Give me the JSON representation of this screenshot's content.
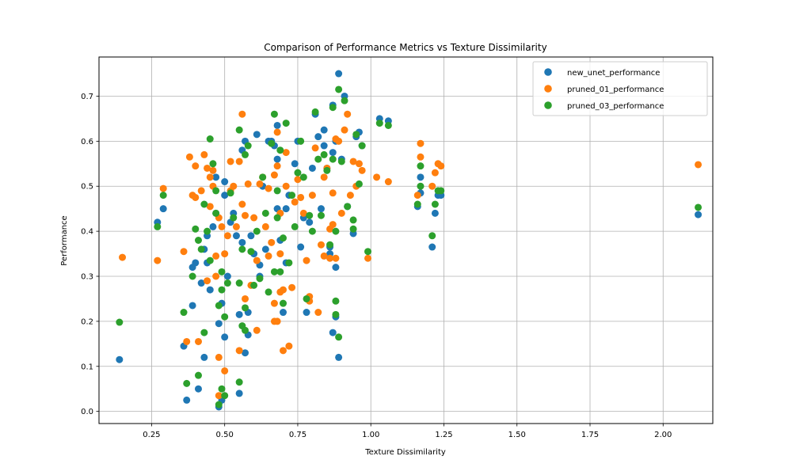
{
  "chart_data": {
    "type": "scatter",
    "title": "Comparison of Performance Metrics vs Texture Dissimilarity",
    "xlabel": "Texture Dissimilarity",
    "ylabel": "Performance",
    "xlim": [
      0.07,
      2.17
    ],
    "ylim": [
      -0.027,
      0.787
    ],
    "xticks": [
      0.25,
      0.5,
      0.75,
      1.0,
      1.25,
      1.5,
      1.75,
      2.0
    ],
    "xtick_labels": [
      "0.25",
      "0.50",
      "0.75",
      "1.00",
      "1.25",
      "1.50",
      "1.75",
      "2.00"
    ],
    "yticks": [
      0.0,
      0.1,
      0.2,
      0.3,
      0.4,
      0.5,
      0.6,
      0.7
    ],
    "ytick_labels": [
      "0.0",
      "0.1",
      "0.2",
      "0.3",
      "0.4",
      "0.5",
      "0.6",
      "0.7"
    ],
    "grid": true,
    "legend_position": "top-right",
    "series": [
      {
        "name": "new_unet_performance",
        "color": "#1f77b4",
        "points": [
          [
            0.14,
            0.115
          ],
          [
            0.27,
            0.42
          ],
          [
            0.29,
            0.45
          ],
          [
            0.36,
            0.145
          ],
          [
            0.37,
            0.025
          ],
          [
            0.39,
            0.235
          ],
          [
            0.39,
            0.32
          ],
          [
            0.4,
            0.33
          ],
          [
            0.41,
            0.05
          ],
          [
            0.42,
            0.285
          ],
          [
            0.43,
            0.12
          ],
          [
            0.43,
            0.36
          ],
          [
            0.44,
            0.33
          ],
          [
            0.44,
            0.39
          ],
          [
            0.45,
            0.27
          ],
          [
            0.46,
            0.41
          ],
          [
            0.47,
            0.44
          ],
          [
            0.47,
            0.52
          ],
          [
            0.48,
            0.195
          ],
          [
            0.48,
            0.01
          ],
          [
            0.49,
            0.025
          ],
          [
            0.49,
            0.24
          ],
          [
            0.5,
            0.165
          ],
          [
            0.5,
            0.48
          ],
          [
            0.5,
            0.51
          ],
          [
            0.51,
            0.3
          ],
          [
            0.52,
            0.42
          ],
          [
            0.53,
            0.44
          ],
          [
            0.54,
            0.39
          ],
          [
            0.55,
            0.215
          ],
          [
            0.55,
            0.04
          ],
          [
            0.56,
            0.58
          ],
          [
            0.56,
            0.375
          ],
          [
            0.57,
            0.6
          ],
          [
            0.57,
            0.13
          ],
          [
            0.58,
            0.22
          ],
          [
            0.58,
            0.17
          ],
          [
            0.59,
            0.39
          ],
          [
            0.6,
            0.35
          ],
          [
            0.61,
            0.615
          ],
          [
            0.62,
            0.325
          ],
          [
            0.62,
            0.3
          ],
          [
            0.63,
            0.5
          ],
          [
            0.64,
            0.36
          ],
          [
            0.65,
            0.6
          ],
          [
            0.66,
            0.6
          ],
          [
            0.67,
            0.59
          ],
          [
            0.68,
            0.635
          ],
          [
            0.68,
            0.56
          ],
          [
            0.68,
            0.45
          ],
          [
            0.69,
            0.44
          ],
          [
            0.69,
            0.38
          ],
          [
            0.7,
            0.22
          ],
          [
            0.71,
            0.33
          ],
          [
            0.71,
            0.45
          ],
          [
            0.72,
            0.48
          ],
          [
            0.74,
            0.55
          ],
          [
            0.75,
            0.6
          ],
          [
            0.76,
            0.365
          ],
          [
            0.77,
            0.43
          ],
          [
            0.78,
            0.22
          ],
          [
            0.79,
            0.42
          ],
          [
            0.8,
            0.54
          ],
          [
            0.81,
            0.66
          ],
          [
            0.82,
            0.61
          ],
          [
            0.83,
            0.45
          ],
          [
            0.84,
            0.59
          ],
          [
            0.84,
            0.625
          ],
          [
            0.85,
            0.54
          ],
          [
            0.86,
            0.35
          ],
          [
            0.86,
            0.365
          ],
          [
            0.87,
            0.575
          ],
          [
            0.87,
            0.68
          ],
          [
            0.87,
            0.175
          ],
          [
            0.88,
            0.21
          ],
          [
            0.88,
            0.32
          ],
          [
            0.88,
            0.6
          ],
          [
            0.89,
            0.75
          ],
          [
            0.89,
            0.12
          ],
          [
            0.9,
            0.56
          ],
          [
            0.91,
            0.7
          ],
          [
            0.92,
            0.455
          ],
          [
            0.94,
            0.395
          ],
          [
            0.95,
            0.61
          ],
          [
            0.96,
            0.62
          ],
          [
            0.97,
            0.59
          ],
          [
            1.03,
            0.65
          ],
          [
            1.06,
            0.645
          ],
          [
            1.16,
            0.455
          ],
          [
            1.17,
            0.485
          ],
          [
            1.17,
            0.52
          ],
          [
            1.21,
            0.365
          ],
          [
            1.22,
            0.44
          ],
          [
            1.23,
            0.48
          ],
          [
            1.24,
            0.48
          ],
          [
            2.12,
            0.437
          ]
        ]
      },
      {
        "name": "pruned_01_performance",
        "color": "#ff7f0e",
        "points": [
          [
            0.15,
            0.342
          ],
          [
            0.27,
            0.335
          ],
          [
            0.29,
            0.495
          ],
          [
            0.36,
            0.355
          ],
          [
            0.37,
            0.155
          ],
          [
            0.38,
            0.565
          ],
          [
            0.39,
            0.48
          ],
          [
            0.4,
            0.475
          ],
          [
            0.4,
            0.545
          ],
          [
            0.41,
            0.155
          ],
          [
            0.42,
            0.49
          ],
          [
            0.43,
            0.57
          ],
          [
            0.44,
            0.54
          ],
          [
            0.44,
            0.29
          ],
          [
            0.45,
            0.52
          ],
          [
            0.45,
            0.455
          ],
          [
            0.46,
            0.5
          ],
          [
            0.46,
            0.535
          ],
          [
            0.47,
            0.345
          ],
          [
            0.47,
            0.3
          ],
          [
            0.48,
            0.035
          ],
          [
            0.48,
            0.12
          ],
          [
            0.48,
            0.43
          ],
          [
            0.49,
            0.41
          ],
          [
            0.5,
            0.35
          ],
          [
            0.5,
            0.09
          ],
          [
            0.51,
            0.39
          ],
          [
            0.52,
            0.49
          ],
          [
            0.52,
            0.555
          ],
          [
            0.53,
            0.5
          ],
          [
            0.54,
            0.41
          ],
          [
            0.55,
            0.135
          ],
          [
            0.55,
            0.555
          ],
          [
            0.56,
            0.46
          ],
          [
            0.56,
            0.66
          ],
          [
            0.57,
            0.25
          ],
          [
            0.57,
            0.435
          ],
          [
            0.58,
            0.505
          ],
          [
            0.59,
            0.28
          ],
          [
            0.6,
            0.43
          ],
          [
            0.61,
            0.335
          ],
          [
            0.61,
            0.18
          ],
          [
            0.62,
            0.505
          ],
          [
            0.63,
            0.52
          ],
          [
            0.64,
            0.41
          ],
          [
            0.65,
            0.495
          ],
          [
            0.65,
            0.345
          ],
          [
            0.66,
            0.375
          ],
          [
            0.67,
            0.2
          ],
          [
            0.67,
            0.24
          ],
          [
            0.67,
            0.525
          ],
          [
            0.68,
            0.545
          ],
          [
            0.68,
            0.62
          ],
          [
            0.68,
            0.2
          ],
          [
            0.69,
            0.35
          ],
          [
            0.69,
            0.265
          ],
          [
            0.69,
            0.44
          ],
          [
            0.7,
            0.135
          ],
          [
            0.7,
            0.27
          ],
          [
            0.71,
            0.5
          ],
          [
            0.71,
            0.575
          ],
          [
            0.72,
            0.145
          ],
          [
            0.73,
            0.275
          ],
          [
            0.74,
            0.465
          ],
          [
            0.75,
            0.515
          ],
          [
            0.76,
            0.475
          ],
          [
            0.77,
            0.44
          ],
          [
            0.78,
            0.335
          ],
          [
            0.79,
            0.255
          ],
          [
            0.79,
            0.245
          ],
          [
            0.8,
            0.48
          ],
          [
            0.81,
            0.585
          ],
          [
            0.82,
            0.22
          ],
          [
            0.83,
            0.37
          ],
          [
            0.84,
            0.52
          ],
          [
            0.84,
            0.345
          ],
          [
            0.85,
            0.54
          ],
          [
            0.86,
            0.405
          ],
          [
            0.86,
            0.34
          ],
          [
            0.87,
            0.415
          ],
          [
            0.87,
            0.485
          ],
          [
            0.88,
            0.605
          ],
          [
            0.88,
            0.34
          ],
          [
            0.89,
            0.6
          ],
          [
            0.9,
            0.44
          ],
          [
            0.91,
            0.625
          ],
          [
            0.92,
            0.66
          ],
          [
            0.93,
            0.48
          ],
          [
            0.94,
            0.555
          ],
          [
            0.95,
            0.5
          ],
          [
            0.96,
            0.55
          ],
          [
            0.97,
            0.535
          ],
          [
            0.99,
            0.34
          ],
          [
            1.02,
            0.52
          ],
          [
            1.06,
            0.51
          ],
          [
            1.16,
            0.48
          ],
          [
            1.17,
            0.595
          ],
          [
            1.17,
            0.565
          ],
          [
            1.21,
            0.5
          ],
          [
            1.22,
            0.53
          ],
          [
            1.23,
            0.55
          ],
          [
            1.24,
            0.545
          ],
          [
            2.12,
            0.548
          ]
        ]
      },
      {
        "name": "pruned_03_performance",
        "color": "#2ca02c",
        "points": [
          [
            0.14,
            0.198
          ],
          [
            0.27,
            0.41
          ],
          [
            0.29,
            0.48
          ],
          [
            0.36,
            0.22
          ],
          [
            0.37,
            0.062
          ],
          [
            0.39,
            0.3
          ],
          [
            0.4,
            0.405
          ],
          [
            0.41,
            0.38
          ],
          [
            0.41,
            0.08
          ],
          [
            0.42,
            0.36
          ],
          [
            0.43,
            0.175
          ],
          [
            0.43,
            0.46
          ],
          [
            0.44,
            0.4
          ],
          [
            0.45,
            0.335
          ],
          [
            0.45,
            0.605
          ],
          [
            0.46,
            0.55
          ],
          [
            0.47,
            0.49
          ],
          [
            0.47,
            0.44
          ],
          [
            0.48,
            0.235
          ],
          [
            0.48,
            0.015
          ],
          [
            0.49,
            0.05
          ],
          [
            0.49,
            0.27
          ],
          [
            0.49,
            0.31
          ],
          [
            0.5,
            0.21
          ],
          [
            0.5,
            0.035
          ],
          [
            0.51,
            0.285
          ],
          [
            0.52,
            0.485
          ],
          [
            0.53,
            0.43
          ],
          [
            0.55,
            0.285
          ],
          [
            0.55,
            0.065
          ],
          [
            0.55,
            0.625
          ],
          [
            0.56,
            0.36
          ],
          [
            0.56,
            0.19
          ],
          [
            0.57,
            0.18
          ],
          [
            0.57,
            0.23
          ],
          [
            0.57,
            0.57
          ],
          [
            0.58,
            0.59
          ],
          [
            0.59,
            0.355
          ],
          [
            0.6,
            0.28
          ],
          [
            0.61,
            0.4
          ],
          [
            0.62,
            0.295
          ],
          [
            0.63,
            0.52
          ],
          [
            0.64,
            0.44
          ],
          [
            0.65,
            0.265
          ],
          [
            0.66,
            0.595
          ],
          [
            0.67,
            0.66
          ],
          [
            0.67,
            0.31
          ],
          [
            0.68,
            0.49
          ],
          [
            0.68,
            0.43
          ],
          [
            0.69,
            0.58
          ],
          [
            0.69,
            0.31
          ],
          [
            0.7,
            0.24
          ],
          [
            0.7,
            0.385
          ],
          [
            0.71,
            0.64
          ],
          [
            0.72,
            0.33
          ],
          [
            0.73,
            0.48
          ],
          [
            0.74,
            0.41
          ],
          [
            0.75,
            0.53
          ],
          [
            0.76,
            0.6
          ],
          [
            0.77,
            0.52
          ],
          [
            0.78,
            0.25
          ],
          [
            0.79,
            0.435
          ],
          [
            0.8,
            0.4
          ],
          [
            0.81,
            0.665
          ],
          [
            0.82,
            0.56
          ],
          [
            0.83,
            0.435
          ],
          [
            0.84,
            0.57
          ],
          [
            0.85,
            0.535
          ],
          [
            0.86,
            0.37
          ],
          [
            0.87,
            0.56
          ],
          [
            0.87,
            0.675
          ],
          [
            0.88,
            0.215
          ],
          [
            0.88,
            0.245
          ],
          [
            0.88,
            0.4
          ],
          [
            0.89,
            0.165
          ],
          [
            0.89,
            0.715
          ],
          [
            0.9,
            0.555
          ],
          [
            0.91,
            0.69
          ],
          [
            0.92,
            0.455
          ],
          [
            0.94,
            0.425
          ],
          [
            0.94,
            0.405
          ],
          [
            0.95,
            0.615
          ],
          [
            0.96,
            0.505
          ],
          [
            0.97,
            0.59
          ],
          [
            0.99,
            0.355
          ],
          [
            1.03,
            0.64
          ],
          [
            1.06,
            0.635
          ],
          [
            1.16,
            0.46
          ],
          [
            1.17,
            0.545
          ],
          [
            1.17,
            0.5
          ],
          [
            1.21,
            0.39
          ],
          [
            1.22,
            0.46
          ],
          [
            1.23,
            0.49
          ],
          [
            1.24,
            0.49
          ],
          [
            2.12,
            0.453
          ]
        ]
      }
    ]
  }
}
